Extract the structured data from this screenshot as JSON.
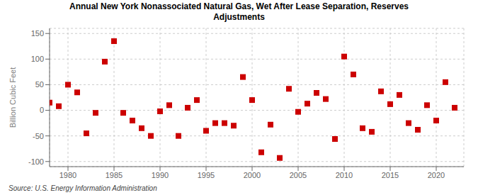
{
  "chart_data": {
    "type": "scatter",
    "title": "Annual New York Nonassociated Natural Gas, Wet After Lease Separation, Reserves\nAdjustments",
    "y_label": "Billion Cubic Feet",
    "annotations": [
      "Source: U.S. Energy Information Administration"
    ],
    "x": [
      1978,
      1979,
      1980,
      1981,
      1982,
      1983,
      1984,
      1985,
      1986,
      1987,
      1988,
      1989,
      1990,
      1991,
      1992,
      1993,
      1994,
      1995,
      1996,
      1997,
      1998,
      1999,
      2000,
      2001,
      2002,
      2003,
      2004,
      2005,
      2006,
      2007,
      2008,
      2009,
      2010,
      2011,
      2012,
      2013,
      2014,
      2015,
      2016,
      2017,
      2018,
      2019,
      2020,
      2021,
      2022
    ],
    "values": [
      15,
      8,
      50,
      35,
      -45,
      -5,
      95,
      135,
      -5,
      -20,
      -35,
      -50,
      -2,
      10,
      -50,
      5,
      20,
      -40,
      -25,
      -25,
      -30,
      65,
      20,
      -82,
      -28,
      -93,
      42,
      -3,
      13,
      34,
      22,
      -56,
      105,
      70,
      -35,
      -42,
      37,
      12,
      30,
      -25,
      -38,
      10,
      -20,
      55,
      5
    ],
    "color": "#cc0000",
    "marker": "square",
    "xlim": [
      1978,
      2023
    ],
    "ylim": [
      -110,
      160
    ],
    "xticks": [
      1980,
      1985,
      1990,
      1995,
      2000,
      2005,
      2010,
      2015,
      2020
    ],
    "yticks": [
      -100,
      -50,
      0,
      50,
      100,
      150
    ],
    "grid": true
  }
}
